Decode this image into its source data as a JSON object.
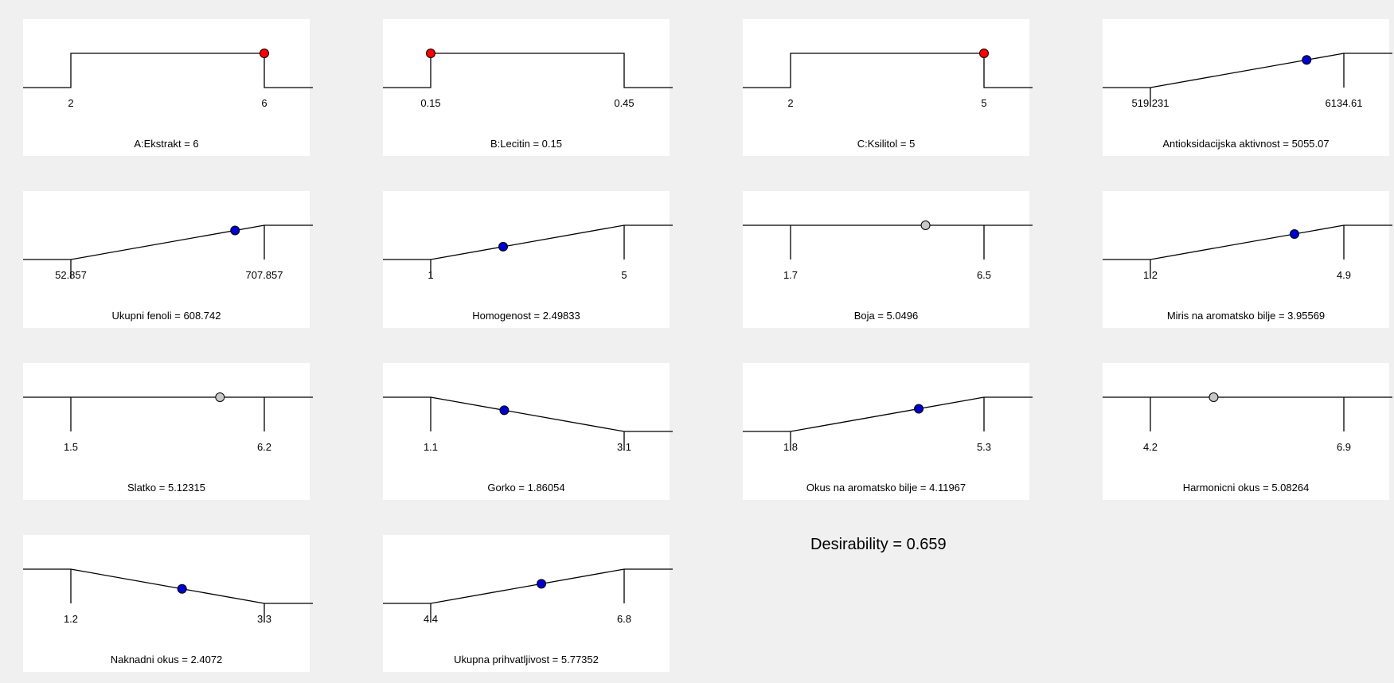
{
  "colors": {
    "background": "#f0f0f0",
    "panel": "#ffffff",
    "line": "#000000",
    "factor_point": "#ff0000",
    "response_point": "#0000cc",
    "none_point": "#c8c8c8"
  },
  "chart_data": [
    {
      "type": "line",
      "kind": "factor",
      "goal": "in-range",
      "low": 2,
      "high": 6,
      "value": 6,
      "low_label": "2",
      "high_label": "6",
      "label": "A:Ekstrakt = 6",
      "point_color": "#ff0000"
    },
    {
      "type": "line",
      "kind": "factor",
      "goal": "in-range",
      "low": 0.15,
      "high": 0.45,
      "value": 0.15,
      "low_label": "0.15",
      "high_label": "0.45",
      "label": "B:Lecitin = 0.15",
      "point_color": "#ff0000"
    },
    {
      "type": "line",
      "kind": "factor",
      "goal": "in-range",
      "low": 2,
      "high": 5,
      "value": 5,
      "low_label": "2",
      "high_label": "5",
      "label": "C:Ksilitol = 5",
      "point_color": "#ff0000"
    },
    {
      "type": "line",
      "kind": "response",
      "goal": "maximize",
      "low": 519.231,
      "high": 6134.61,
      "value": 5055.07,
      "low_label": "519.231",
      "high_label": "6134.61",
      "label": "Antioksidacijska aktivnost = 5055.07",
      "point_color": "#0000cc"
    },
    {
      "type": "line",
      "kind": "response",
      "goal": "maximize",
      "low": 52.857,
      "high": 707.857,
      "value": 608.742,
      "low_label": "52.857",
      "high_label": "707.857",
      "label": "Ukupni fenoli = 608.742",
      "point_color": "#0000cc"
    },
    {
      "type": "line",
      "kind": "response",
      "goal": "maximize",
      "low": 1,
      "high": 5,
      "value": 2.49833,
      "low_label": "1",
      "high_label": "5",
      "label": "Homogenost = 2.49833",
      "point_color": "#0000cc"
    },
    {
      "type": "line",
      "kind": "response",
      "goal": "none",
      "low": 1.7,
      "high": 6.5,
      "value": 5.0496,
      "low_label": "1.7",
      "high_label": "6.5",
      "label": "Boja = 5.0496",
      "point_color": "#c8c8c8"
    },
    {
      "type": "line",
      "kind": "response",
      "goal": "maximize",
      "low": 1.2,
      "high": 4.9,
      "value": 3.95569,
      "low_label": "1.2",
      "high_label": "4.9",
      "label": "Miris na aromatsko bilje = 3.95569",
      "point_color": "#0000cc"
    },
    {
      "type": "line",
      "kind": "response",
      "goal": "none",
      "low": 1.5,
      "high": 6.2,
      "value": 5.12315,
      "low_label": "1.5",
      "high_label": "6.2",
      "label": "Slatko = 5.12315",
      "point_color": "#c8c8c8"
    },
    {
      "type": "line",
      "kind": "response",
      "goal": "minimize",
      "low": 1.1,
      "high": 3.1,
      "value": 1.86054,
      "low_label": "1.1",
      "high_label": "3.1",
      "label": "Gorko = 1.86054",
      "point_color": "#0000cc"
    },
    {
      "type": "line",
      "kind": "response",
      "goal": "maximize",
      "low": 1.8,
      "high": 5.3,
      "value": 4.11967,
      "low_label": "1.8",
      "high_label": "5.3",
      "label": "Okus na aromatsko bilje = 4.11967",
      "point_color": "#0000cc"
    },
    {
      "type": "line",
      "kind": "response",
      "goal": "none",
      "low": 4.2,
      "high": 6.9,
      "value": 5.08264,
      "low_label": "4.2",
      "high_label": "6.9",
      "label": "Harmonicni okus = 5.08264",
      "point_color": "#c8c8c8"
    },
    {
      "type": "line",
      "kind": "response",
      "goal": "minimize",
      "low": 1.2,
      "high": 3.3,
      "value": 2.4072,
      "low_label": "1.2",
      "high_label": "3.3",
      "label": "Naknadni okus = 2.4072",
      "point_color": "#0000cc"
    },
    {
      "type": "line",
      "kind": "response",
      "goal": "maximize",
      "low": 4.4,
      "high": 6.8,
      "value": 5.77352,
      "low_label": "4.4",
      "high_label": "6.8",
      "label": "Ukupna prihvatljivost = 5.77352",
      "point_color": "#0000cc"
    }
  ],
  "desirability": {
    "text": "Desirability = 0.659",
    "value": 0.659
  }
}
